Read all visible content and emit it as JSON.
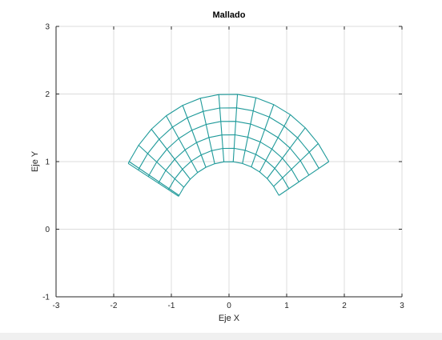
{
  "chart_data": {
    "type": "line",
    "title": "Mallado",
    "xlabel": "Eje X",
    "ylabel": "Eje Y",
    "xlim": [
      -3,
      3
    ],
    "ylim": [
      -1,
      3
    ],
    "xticks": [
      -3,
      -2,
      -1,
      0,
      1,
      2,
      3
    ],
    "yticks": [
      -1,
      0,
      1,
      2,
      3
    ],
    "grid": true,
    "mesh_color": "#1f9a9a",
    "mesh": {
      "center": [
        0,
        0
      ],
      "radii": [
        1.0,
        1.2,
        1.4,
        1.6,
        1.8,
        2.0
      ],
      "angles_deg": [
        30,
        39.3,
        48.6,
        57.9,
        67.2,
        76.5,
        85.8,
        95.1,
        104.4,
        113.7,
        123,
        132.3,
        141.6,
        150.9,
        150
      ]
    }
  }
}
